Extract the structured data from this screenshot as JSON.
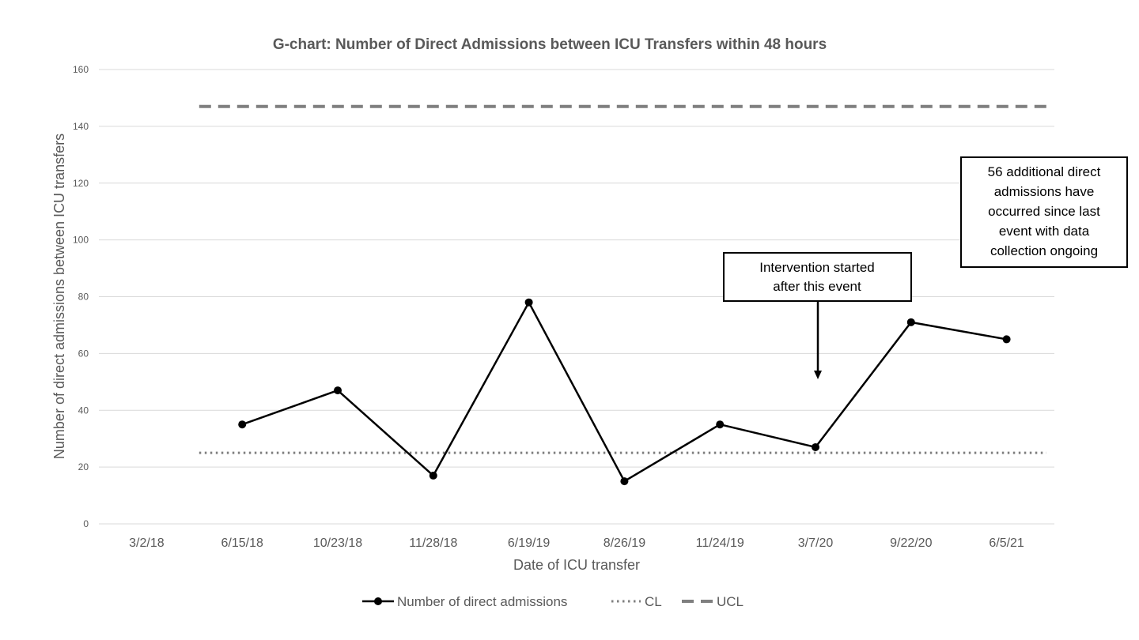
{
  "chart_data": {
    "type": "line",
    "title": "G-chart: Number of Direct Admissions between ICU Transfers within 48 hours",
    "xlabel": "Date of ICU transfer",
    "ylabel": "Number of direct admissions between ICU transfers",
    "categories": [
      "3/2/18",
      "6/15/18",
      "10/23/18",
      "11/28/18",
      "6/19/19",
      "8/26/19",
      "11/24/19",
      "3/7/20",
      "9/22/20",
      "6/5/21"
    ],
    "ylim": [
      0,
      160
    ],
    "yticks": [
      0,
      20,
      40,
      60,
      80,
      100,
      120,
      140,
      160
    ],
    "grid": true,
    "legend_position": "bottom",
    "series": [
      {
        "name": "Number of direct admissions",
        "values": [
          null,
          35,
          47,
          17,
          78,
          15,
          35,
          27,
          71,
          65
        ],
        "color": "#000000",
        "style": "solid-markers"
      },
      {
        "name": "CL",
        "values": [
          null,
          25,
          25,
          25,
          25,
          25,
          25,
          25,
          25,
          25
        ],
        "color": "#7f7f7f",
        "style": "dotted"
      },
      {
        "name": "UCL",
        "values": [
          null,
          147,
          147,
          147,
          147,
          147,
          147,
          147,
          147,
          147
        ],
        "color": "#7f7f7f",
        "style": "dashed"
      }
    ],
    "annotations": [
      {
        "lines": [
          "Intervention started",
          "after this event"
        ],
        "points_to": "3/7/20"
      },
      {
        "lines": [
          "56 additional direct",
          "admissions have",
          "occurred since last",
          "event with data",
          "collection ongoing"
        ]
      }
    ]
  }
}
